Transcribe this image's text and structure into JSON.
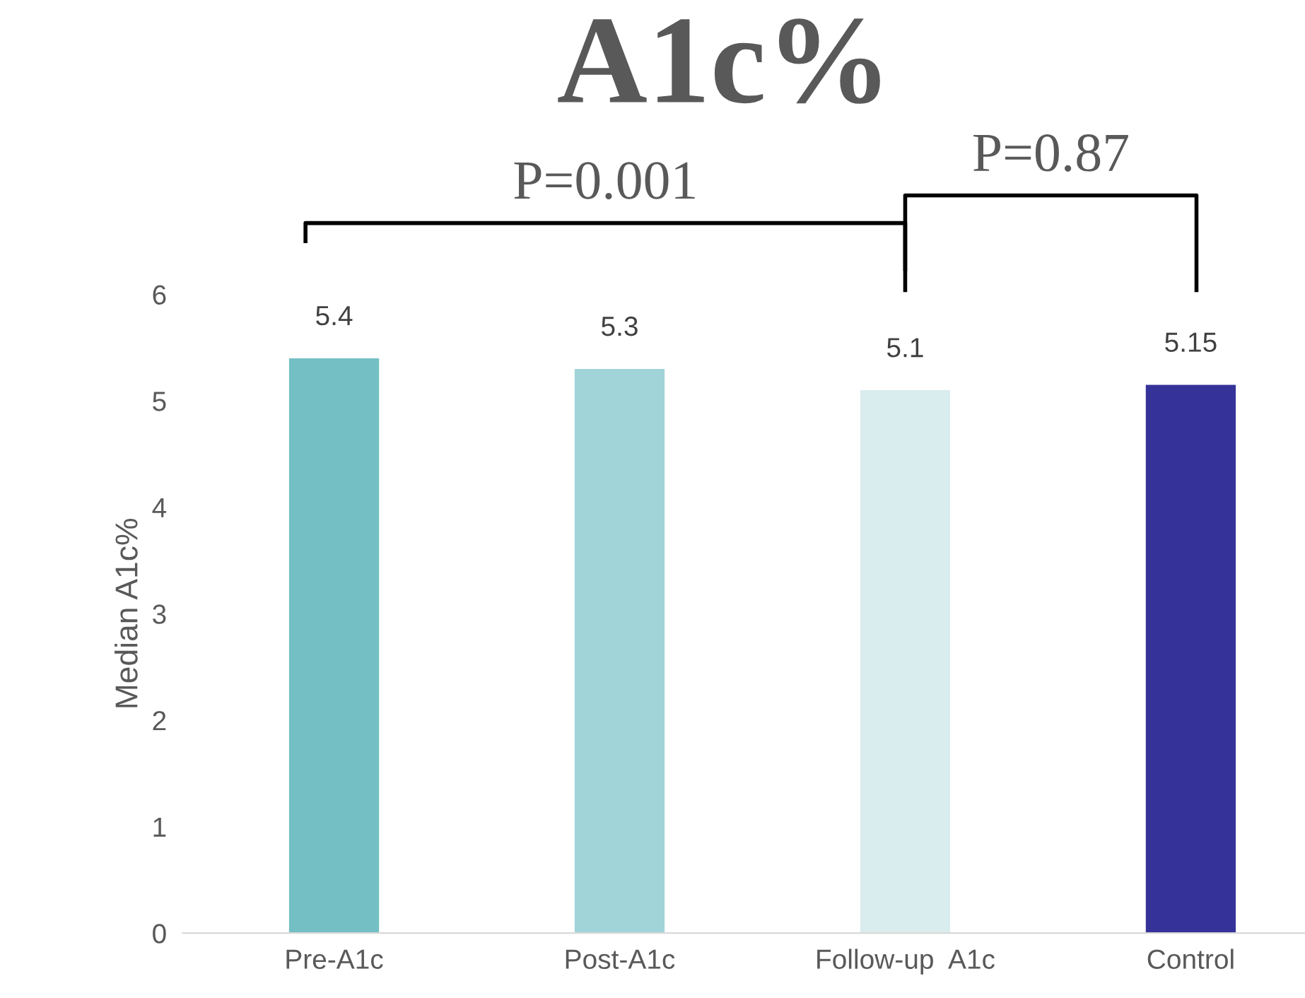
{
  "chart_data": {
    "type": "bar",
    "title": "A1c%",
    "ylabel": "Median A1c%",
    "categories": [
      "Pre-A1c",
      "Post-A1c",
      "Follow-up  A1c",
      "Control"
    ],
    "values": [
      5.4,
      5.3,
      5.1,
      5.15
    ],
    "colors": [
      "#73bfc4",
      "#a0d4d8",
      "#d9ecee",
      "#353399"
    ],
    "ylim": [
      0,
      6
    ],
    "yticks": [
      0,
      1,
      2,
      3,
      4,
      5,
      6
    ],
    "grid": false,
    "data_labels": true,
    "annotations": [
      "P=0.001",
      "P=0.87"
    ]
  }
}
